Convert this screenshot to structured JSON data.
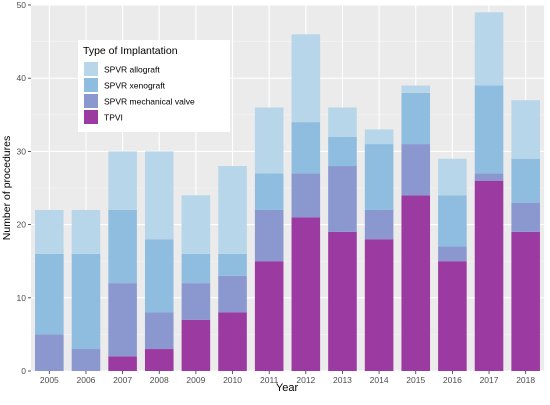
{
  "chart_data": {
    "type": "bar",
    "stacked": true,
    "xlabel": "Year",
    "ylabel": "Number of procedures",
    "ylim": [
      0,
      50
    ],
    "yticks": [
      0,
      10,
      20,
      30,
      40,
      50
    ],
    "grid": true,
    "legend": {
      "title": "Type of Implantation",
      "placement": "top-left"
    },
    "categories": [
      "2005",
      "2006",
      "2007",
      "2008",
      "2009",
      "2010",
      "2011",
      "2012",
      "2013",
      "2014",
      "2015",
      "2016",
      "2017",
      "2018"
    ],
    "series": [
      {
        "name": "TPVI",
        "color": "#9b3aa0",
        "values": [
          0,
          0,
          2,
          3,
          7,
          8,
          15,
          21,
          19,
          18,
          24,
          15,
          26,
          19
        ]
      },
      {
        "name": "SPVR mechanical valve",
        "color": "#8b98cf",
        "values": [
          5,
          3,
          10,
          5,
          5,
          5,
          7,
          6,
          9,
          4,
          7,
          2,
          1,
          4
        ]
      },
      {
        "name": "SPVR xenograft",
        "color": "#8fbde0",
        "values": [
          11,
          13,
          10,
          10,
          4,
          3,
          5,
          7,
          4,
          9,
          7,
          7,
          12,
          6
        ]
      },
      {
        "name": "SPVR allograft",
        "color": "#b8d6ea",
        "values": [
          6,
          6,
          8,
          12,
          8,
          12,
          9,
          12,
          4,
          2,
          1,
          5,
          10,
          8
        ]
      }
    ],
    "legend_order": [
      "SPVR allograft",
      "SPVR xenograft",
      "SPVR mechanical valve",
      "TPVI"
    ]
  }
}
